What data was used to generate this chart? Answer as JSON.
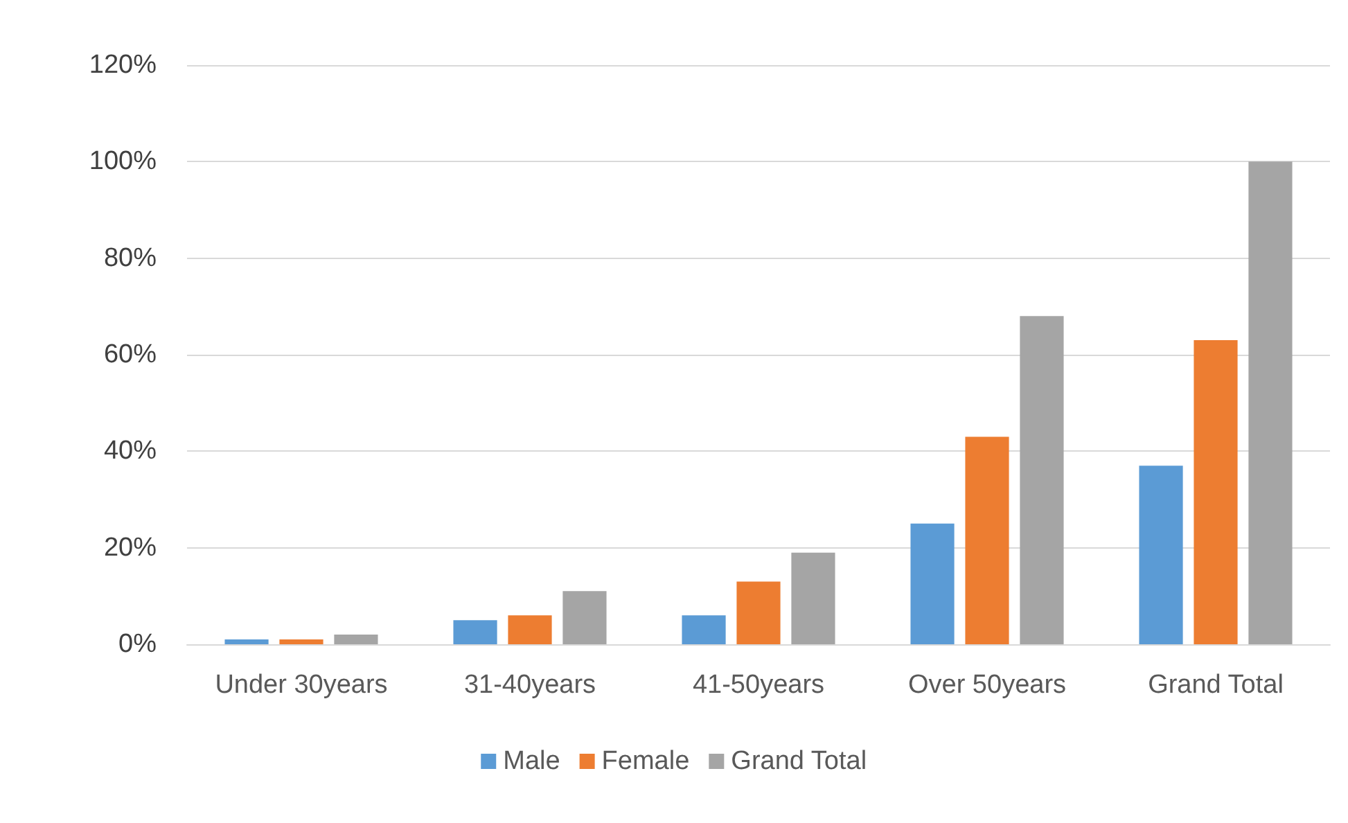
{
  "chart_data": {
    "type": "bar",
    "categories": [
      "Under 30years",
      "31-40years",
      "41-50years",
      "Over 50years",
      "Grand Total"
    ],
    "series": [
      {
        "name": "Male",
        "color": "#5b9bd5",
        "values": [
          1,
          5,
          6,
          25,
          37
        ]
      },
      {
        "name": "Female",
        "color": "#ed7d31",
        "values": [
          1,
          6,
          13,
          43,
          63
        ]
      },
      {
        "name": "Grand Total",
        "color": "#a5a5a5",
        "values": [
          2,
          11,
          19,
          68,
          100
        ]
      }
    ],
    "ylim": [
      0,
      120
    ],
    "yticks": [
      {
        "value": 0,
        "label": "0%"
      },
      {
        "value": 20,
        "label": "20%"
      },
      {
        "value": 40,
        "label": "40%"
      },
      {
        "value": 60,
        "label": "60%"
      },
      {
        "value": 80,
        "label": "80%"
      },
      {
        "value": 100,
        "label": "100%"
      },
      {
        "value": 120,
        "label": "120%"
      }
    ],
    "grid": "y",
    "legend": "bottom"
  }
}
